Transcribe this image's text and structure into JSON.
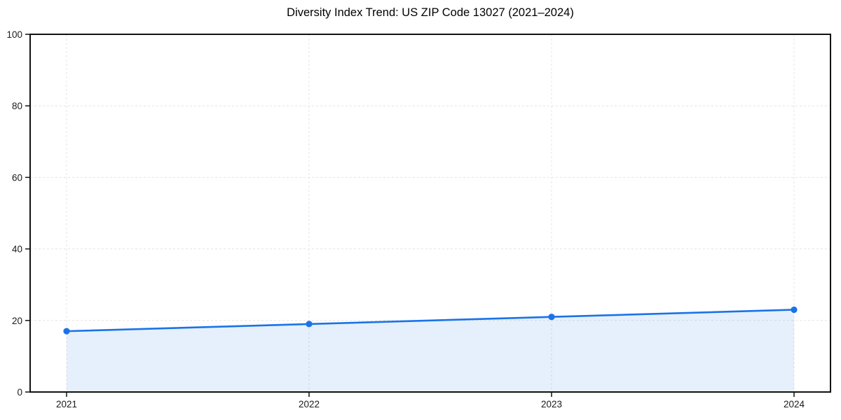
{
  "page": {
    "background": "#ffffff"
  },
  "chart_data": {
    "type": "line",
    "title": "Diversity Index Trend: US ZIP Code 13027 (2021–2024)",
    "x": [
      "2021",
      "2022",
      "2023",
      "2024"
    ],
    "series": [
      {
        "name": "Diversity Index",
        "values": [
          17,
          19,
          21,
          23
        ],
        "color": "#1a73e8",
        "fill": "rgba(26,115,232,0.11)",
        "marker": "circle"
      }
    ],
    "xlabel": "",
    "ylabel": "",
    "ylim": [
      0,
      100
    ],
    "yticks": [
      0,
      20,
      40,
      60,
      80,
      100
    ],
    "grid": true,
    "grid_style": "dashed",
    "grid_color": "#e4e4e4",
    "axis_color": "#111111",
    "tick_label_color": "#1a1a1a",
    "title_color": "#000000",
    "legend": false
  }
}
